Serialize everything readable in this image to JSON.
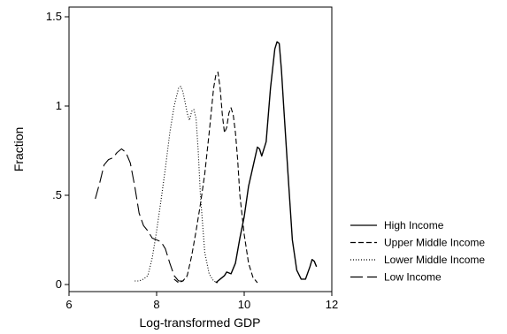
{
  "chart_data": {
    "type": "line",
    "title": "",
    "xlabel": "Log-transformed GDP",
    "ylabel": "Fraction",
    "xlim": [
      6,
      12
    ],
    "ylim": [
      0,
      1.5
    ],
    "x_ticks": [
      6,
      8,
      10,
      12
    ],
    "x_tick_labels": [
      "6",
      "8",
      "10",
      "12"
    ],
    "y_ticks": [
      0,
      0.5,
      1,
      1.5
    ],
    "y_tick_labels": [
      "0",
      ".5",
      "1",
      "1.5"
    ],
    "grid": false,
    "legend_position": "right",
    "series": [
      {
        "name": "High Income",
        "line_style": "solid",
        "color": "#000000",
        "x": [
          9.35,
          9.45,
          9.55,
          9.6,
          9.7,
          9.8,
          9.9,
          10.0,
          10.1,
          10.2,
          10.3,
          10.35,
          10.4,
          10.5,
          10.6,
          10.7,
          10.75,
          10.8,
          10.85,
          10.9,
          11.0,
          11.1,
          11.2,
          11.3,
          11.4,
          11.5,
          11.55,
          11.6,
          11.65
        ],
        "y": [
          0.01,
          0.03,
          0.05,
          0.07,
          0.06,
          0.12,
          0.26,
          0.38,
          0.55,
          0.66,
          0.77,
          0.76,
          0.72,
          0.8,
          1.1,
          1.32,
          1.36,
          1.35,
          1.2,
          1.0,
          0.62,
          0.25,
          0.08,
          0.03,
          0.03,
          0.1,
          0.14,
          0.13,
          0.1
        ]
      },
      {
        "name": "Upper Middle Income",
        "line_style": "dash",
        "color": "#000000",
        "x": [
          8.4,
          8.5,
          8.6,
          8.7,
          8.8,
          8.9,
          9.0,
          9.1,
          9.2,
          9.3,
          9.35,
          9.4,
          9.45,
          9.5,
          9.55,
          9.6,
          9.65,
          9.7,
          9.75,
          9.8,
          9.85,
          9.9,
          10.0,
          10.1,
          10.2,
          10.3
        ],
        "y": [
          0.03,
          0.01,
          0.02,
          0.05,
          0.16,
          0.3,
          0.45,
          0.62,
          0.85,
          1.1,
          1.17,
          1.19,
          1.1,
          0.95,
          0.85,
          0.88,
          0.96,
          0.99,
          0.95,
          0.85,
          0.7,
          0.5,
          0.28,
          0.12,
          0.04,
          0.01
        ]
      },
      {
        "name": "Lower Middle Income",
        "line_style": "dot",
        "color": "#000000",
        "x": [
          7.5,
          7.6,
          7.7,
          7.8,
          7.9,
          8.0,
          8.1,
          8.2,
          8.3,
          8.4,
          8.5,
          8.55,
          8.6,
          8.65,
          8.7,
          8.75,
          8.8,
          8.85,
          8.9,
          8.95,
          9.0,
          9.1,
          9.2,
          9.3,
          9.4
        ],
        "y": [
          0.02,
          0.02,
          0.03,
          0.05,
          0.15,
          0.3,
          0.47,
          0.65,
          0.85,
          1.0,
          1.1,
          1.11,
          1.08,
          1.02,
          0.96,
          0.92,
          0.97,
          0.98,
          0.93,
          0.75,
          0.5,
          0.18,
          0.06,
          0.02,
          0.01
        ]
      },
      {
        "name": "Low Income",
        "line_style": "longdash",
        "color": "#000000",
        "x": [
          6.6,
          6.7,
          6.8,
          6.9,
          7.0,
          7.1,
          7.2,
          7.3,
          7.4,
          7.5,
          7.6,
          7.7,
          7.8,
          7.9,
          8.0,
          8.1,
          8.2,
          8.3,
          8.4,
          8.5,
          8.6,
          8.7
        ],
        "y": [
          0.48,
          0.57,
          0.67,
          0.7,
          0.71,
          0.74,
          0.76,
          0.74,
          0.68,
          0.55,
          0.4,
          0.33,
          0.3,
          0.26,
          0.25,
          0.24,
          0.2,
          0.12,
          0.05,
          0.02,
          0.02,
          0.04
        ]
      }
    ]
  }
}
